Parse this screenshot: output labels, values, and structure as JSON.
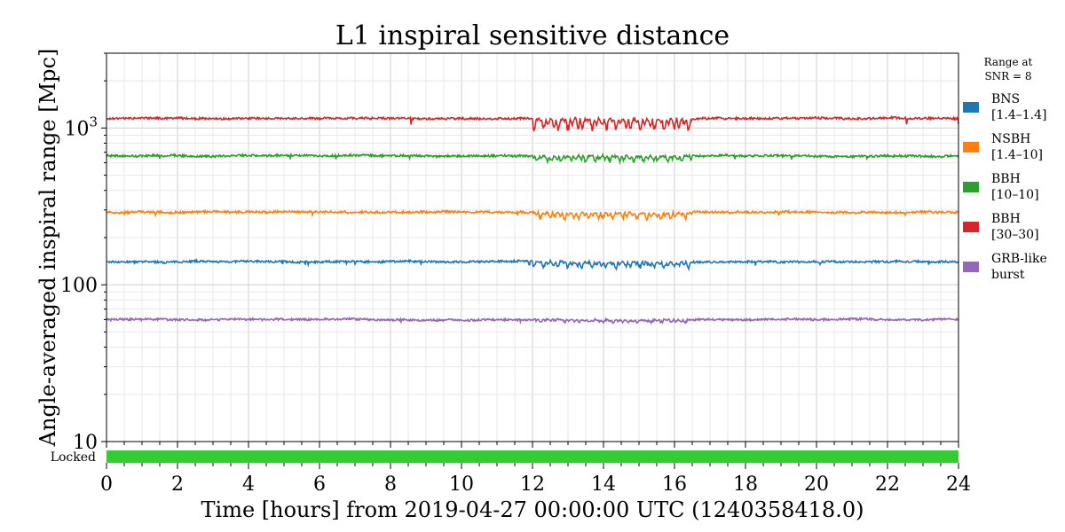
{
  "chart_data": {
    "type": "line",
    "title": "L1 inspiral sensitive distance",
    "xlabel": "Time [hours] from 2019-04-27 00:00:00 UTC (1240358418.0)",
    "ylabel": "Angle-averaged inspiral range [Mpc]",
    "xlim": [
      0,
      24
    ],
    "ylim": [
      10,
      3000
    ],
    "yscale": "log",
    "x_ticks": [
      "0",
      "2",
      "4",
      "6",
      "8",
      "10",
      "12",
      "14",
      "16",
      "18",
      "20",
      "22",
      "24"
    ],
    "y_ticks": [
      {
        "value": 10,
        "label": "10"
      },
      {
        "value": 100,
        "label": "100"
      },
      {
        "value": 1000,
        "label": "10",
        "sup": "3"
      }
    ],
    "grid": true,
    "legend": {
      "title_line1": "Range at",
      "title_line2": "SNR = 8",
      "placement": "right-outside"
    },
    "state_bar": {
      "label": "Locked",
      "color": "#33cc33",
      "segments": [
        [
          0,
          24
        ]
      ]
    },
    "noisy_interval_hours": [
      12,
      16.5
    ],
    "series": [
      {
        "name_line1": "BNS",
        "name_line2": "[1.4–1.4]",
        "color": "#1f77b4",
        "baseline": 140,
        "noisy_dip": 12
      },
      {
        "name_line1": "NSBH",
        "name_line2": "[1.4–10]",
        "color": "#ff7f0e",
        "baseline": 290,
        "noisy_dip": 25
      },
      {
        "name_line1": "BBH",
        "name_line2": "[10–10]",
        "color": "#2ca02c",
        "baseline": 665,
        "noisy_dip": 60
      },
      {
        "name_line1": "BBH",
        "name_line2": "[30–30]",
        "color": "#d62728",
        "baseline": 1150,
        "noisy_dip": 180
      },
      {
        "name_line1": "GRB-like",
        "name_line2": "burst",
        "color": "#9467bd",
        "baseline": 60,
        "noisy_dip": 2
      }
    ]
  }
}
